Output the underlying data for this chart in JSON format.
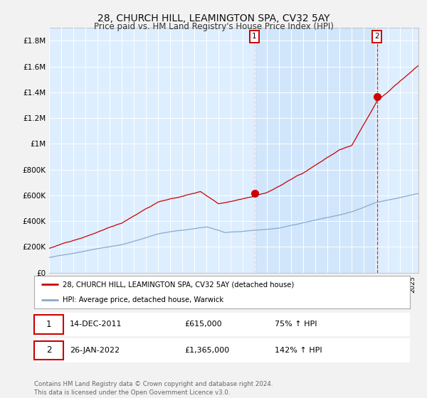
{
  "title": "28, CHURCH HILL, LEAMINGTON SPA, CV32 5AY",
  "subtitle": "Price paid vs. HM Land Registry's House Price Index (HPI)",
  "title_fontsize": 10,
  "subtitle_fontsize": 8.5,
  "ylim": [
    0,
    1900000
  ],
  "yticks": [
    0,
    200000,
    400000,
    600000,
    800000,
    1000000,
    1200000,
    1400000,
    1600000,
    1800000
  ],
  "ytick_labels": [
    "£0",
    "£200K",
    "£400K",
    "£600K",
    "£800K",
    "£1M",
    "£1.2M",
    "£1.4M",
    "£1.6M",
    "£1.8M"
  ],
  "fig_bg_color": "#f2f2f2",
  "plot_bg_color": "#ddeeff",
  "grid_color": "#ffffff",
  "red_color": "#cc0000",
  "blue_color": "#88aacc",
  "sale1_year": 2011.96,
  "sale1_price": 615000,
  "sale2_year": 2022.07,
  "sale2_price": 1365000,
  "legend_entries": [
    "28, CHURCH HILL, LEAMINGTON SPA, CV32 5AY (detached house)",
    "HPI: Average price, detached house, Warwick"
  ],
  "table_row1": [
    "1",
    "14-DEC-2011",
    "£615,000",
    "75% ↑ HPI"
  ],
  "table_row2": [
    "2",
    "26-JAN-2022",
    "£1,365,000",
    "142% ↑ HPI"
  ],
  "footer": "Contains HM Land Registry data © Crown copyright and database right 2024.\nThis data is licensed under the Open Government Licence v3.0.",
  "xmin": 1995.0,
  "xmax": 2025.5
}
